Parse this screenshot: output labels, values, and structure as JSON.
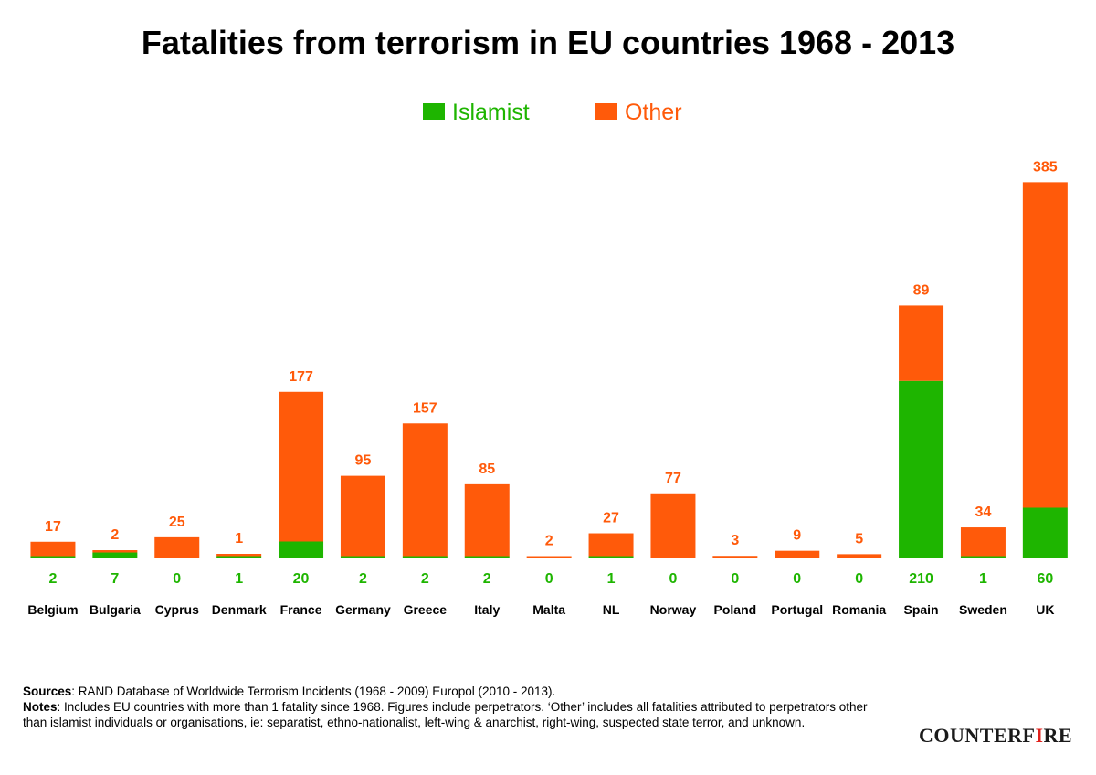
{
  "title": "Fatalities from terrorism in EU countries 1968 - 2013",
  "colors": {
    "islamist": "#1eb500",
    "other": "#ff5a0a",
    "text": "#000000"
  },
  "chart_data": {
    "type": "bar",
    "stacked": true,
    "title": "Fatalities from terrorism in EU countries 1968 - 2013",
    "categories": [
      "Belgium",
      "Bulgaria",
      "Cyprus",
      "Denmark",
      "France",
      "Germany",
      "Greece",
      "Italy",
      "Malta",
      "NL",
      "Norway",
      "Poland",
      "Portugal",
      "Romania",
      "Spain",
      "Sweden",
      "UK"
    ],
    "series": [
      {
        "name": "Islamist",
        "color": "#1eb500",
        "values": [
          2,
          7,
          0,
          1,
          20,
          2,
          2,
          2,
          0,
          1,
          0,
          0,
          0,
          0,
          210,
          1,
          60
        ]
      },
      {
        "name": "Other",
        "color": "#ff5a0a",
        "values": [
          17,
          2,
          25,
          1,
          177,
          95,
          157,
          85,
          2,
          27,
          77,
          3,
          9,
          5,
          89,
          34,
          385
        ]
      }
    ],
    "legend": "top-center",
    "grid": false,
    "y_axis_visible": false,
    "ylim": [
      0,
      440
    ]
  },
  "footer": {
    "sources_label": "Sources",
    "sources_text": ": RAND Database of Worldwide Terrorism Incidents (1968 - 2009) Europol (2010 - 2013).",
    "notes_label": "Notes",
    "notes_text": ": Includes EU countries with more than 1 fatality since 1968. Figures include perpetrators. ‘Other’ includes all fatalities attributed to perpetrators other than islamist individuals or organisations, ie: separatist, ethno-nationalist, left-wing & anarchist, right-wing, suspected state terror, and unknown."
  },
  "logo": {
    "text_main": "COUNTERF",
    "text_accent": "I",
    "text_end": "RE"
  }
}
